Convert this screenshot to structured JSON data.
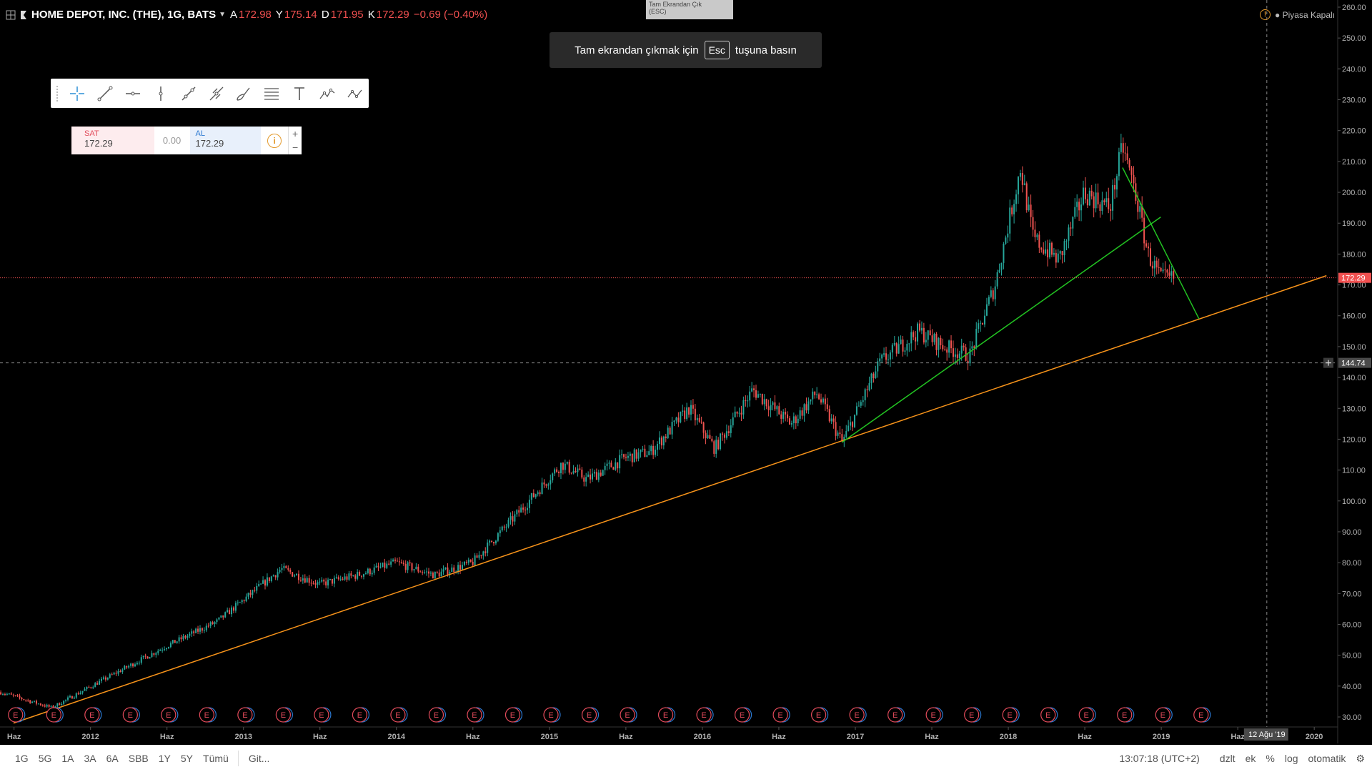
{
  "header": {
    "symbol": "HOME DEPOT, INC. (THE), 1G, BATS",
    "open_label": "A",
    "open": "172.98",
    "high_label": "Y",
    "high": "175.14",
    "low_label": "D",
    "low": "171.95",
    "close_label": "K",
    "close": "172.29",
    "change": "−0.69 (−0.40%)"
  },
  "market_status": "Piyasa Kapalı",
  "fullscreen_tooltip": {
    "line1": "Tam Ekrandan Çık",
    "line2": "(ESC)"
  },
  "esc_banner": {
    "before": "Tam ekrandan çıkmak için",
    "key": "Esc",
    "after": "tuşuna basın"
  },
  "drawing_toolbar": [
    "crosshair-icon",
    "trend-line-icon",
    "horizontal-ray-icon",
    "vertical-line-icon",
    "parallel-channel-icon",
    "pitchfork-icon",
    "brush-icon",
    "fib-retracement-icon",
    "text-icon",
    "xabcd-pattern-icon",
    "abcd-pattern-icon"
  ],
  "trade_panel": {
    "sell_label": "SAT",
    "sell_value": "172.29",
    "spread": "0.00",
    "buy_label": "AL",
    "buy_value": "172.29",
    "plus": "+",
    "minus": "−"
  },
  "bottom_bar": {
    "ranges": [
      "1G",
      "5G",
      "1A",
      "3A",
      "6A",
      "SBB",
      "1Y",
      "5Y",
      "Tümü"
    ],
    "goto": "Git...",
    "time": "13:07:18 (UTC+2)",
    "options": [
      "dzlt",
      "ek",
      "%",
      "log",
      "otomatik"
    ]
  },
  "colors": {
    "up": "#26a69a",
    "down": "#ef5350",
    "price_line": "#f05050",
    "orange_line": "#f7931a",
    "green_line": "#22c322",
    "axis_text": "#b0b0b0"
  },
  "chart_data": {
    "type": "line",
    "series": [
      {
        "name": "",
        "x": [
          "2011-05",
          "2011-09",
          "2012-01",
          "2012-06",
          "2012-10",
          "2013-03",
          "2013-06",
          "2013-09",
          "2013-12",
          "2014-03",
          "2014-06",
          "2014-10",
          "2015-01",
          "2015-03",
          "2015-06",
          "2015-08",
          "2015-11",
          "2016-01",
          "2016-04",
          "2016-07",
          "2016-09",
          "2016-11",
          "2017-02",
          "2017-05",
          "2017-07",
          "2017-09",
          "2017-11",
          "2018-01",
          "2018-02",
          "2018-04",
          "2018-06",
          "2018-08",
          "2018-09",
          "2018-10",
          "2018-11",
          "2018-12",
          "2019-01"
        ],
        "values": [
          38,
          33,
          42,
          53,
          61,
          78,
          73,
          76,
          80,
          76,
          80,
          98,
          112,
          107,
          114,
          116,
          130,
          117,
          136,
          125,
          135,
          119,
          145,
          155,
          150,
          147,
          170,
          208,
          185,
          178,
          200,
          195,
          215,
          200,
          180,
          172,
          172
        ]
      }
    ],
    "trendlines": [
      {
        "label": "",
        "from": [
          "2011-06",
          28
        ],
        "to": [
          "2020-01",
          173
        ]
      },
      {
        "label": "",
        "from": [
          "2016-11",
          119
        ],
        "to": [
          "2018-12",
          192
        ]
      },
      {
        "label": "",
        "from": [
          "2018-09",
          208
        ],
        "to": [
          "2019-03",
          159
        ]
      }
    ],
    "last_price": 172.29,
    "crosshair_price": 144.74,
    "crosshair_date": "12 Ağu '19",
    "ylim": [
      30,
      260
    ],
    "y_ticks": [
      "260.00",
      "250.00",
      "240.00",
      "230.00",
      "220.00",
      "210.00",
      "200.00",
      "190.00",
      "180.00",
      "170.00",
      "160.00",
      "150.00",
      "140.00",
      "130.00",
      "120.00",
      "110.00",
      "100.00",
      "90.00",
      "80.00",
      "70.00",
      "60.00",
      "50.00",
      "40.00",
      "30.00"
    ],
    "x_ticks": [
      "Haz",
      "2012",
      "Haz",
      "2013",
      "Haz",
      "2014",
      "Haz",
      "2015",
      "Haz",
      "2016",
      "Haz",
      "2017",
      "Haz",
      "2018",
      "Haz",
      "2019",
      "Haz",
      "2020"
    ],
    "earnings_marker": "E",
    "grid": false
  }
}
